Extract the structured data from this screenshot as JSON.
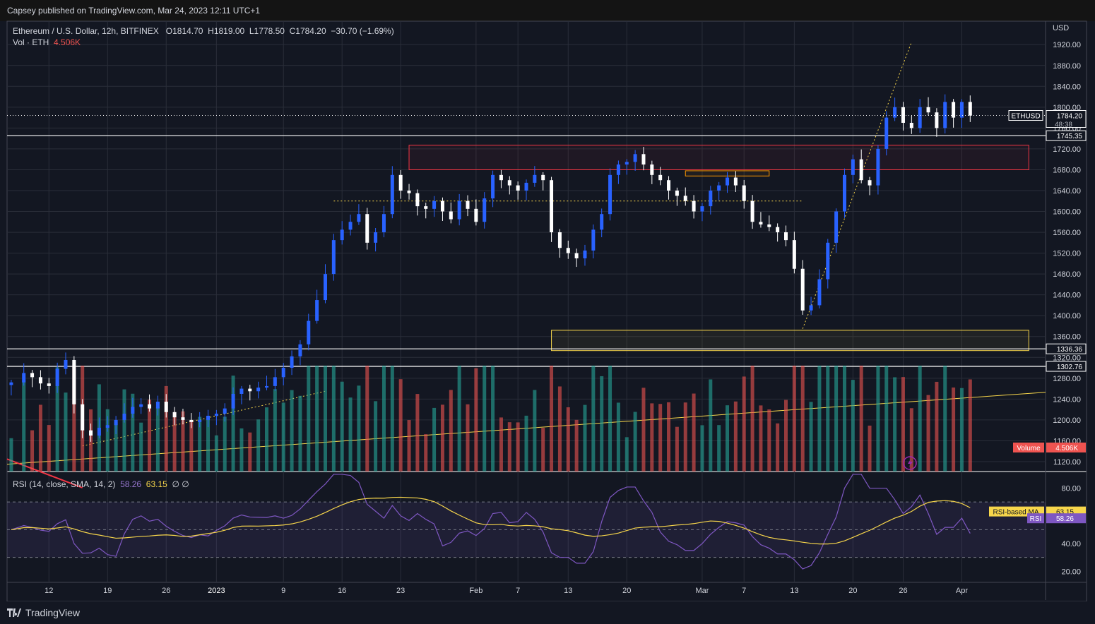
{
  "header": {
    "publisher": "Capsey published on TradingView.com, Mar 24, 2023 12:11 UTC+1"
  },
  "symbol": {
    "name": "Ethereum / U.S. Dollar, 12h, BITFINEX",
    "open": "O1814.70",
    "high": "H1819.00",
    "low": "L1778.50",
    "close": "C1784.20",
    "change": "−30.70 (−1.69%)",
    "vol_label": "Vol · ETH",
    "vol_value": "4.506K"
  },
  "rsi_legend": {
    "label": "RSI (14, close, SMA, 14, 2)",
    "rsi": "58.26",
    "ma": "63.15",
    "extra": "∅ ∅"
  },
  "footer": {
    "brand": "TradingView"
  },
  "colors": {
    "bg": "#131722",
    "up": "#2962ff",
    "down": "#ffffff",
    "vol_up": "#26a69a",
    "vol_down": "#ef5350",
    "rsi": "#7e57c2",
    "rsi_ma": "#f7d64b",
    "accent_red": "#f23645",
    "accent_yellow": "#f7d64b"
  },
  "chart_data": {
    "type": "candlestick",
    "currency": "USD",
    "price_ticks": [
      1920,
      1880,
      1840,
      1800,
      1760,
      1720,
      1680,
      1640,
      1600,
      1560,
      1520,
      1480,
      1440,
      1400,
      1360,
      1320,
      1280,
      1240,
      1200,
      1160,
      1120
    ],
    "price_tick_labels": [
      "1920.00",
      "1880.00",
      "1840.00",
      "1800.00",
      "1760.00",
      "1720.00",
      "1680.00",
      "1640.00",
      "1600.00",
      "1560.00",
      "1520.00",
      "1480.00",
      "1440.00",
      "1400.00",
      "1360.00",
      "1320.00",
      "1280.00",
      "1240.00",
      "1200.00",
      "1160.00",
      "1120.00"
    ],
    "price_range": [
      1101,
      1965
    ],
    "x_tick_labels": [
      "12",
      "19",
      "26",
      "2023",
      "9",
      "16",
      "23",
      "Feb",
      "7",
      "13",
      "20",
      "Mar",
      "7",
      "13",
      "20",
      "26",
      "Apr"
    ],
    "x_tick_days": [
      12,
      19,
      26,
      32,
      40,
      47,
      54,
      63,
      68,
      74,
      81,
      90,
      95,
      101,
      108,
      114,
      121
    ],
    "x_day_range": [
      7,
      131
    ],
    "series_close_anchors": [
      [
        7.5,
        1272
      ],
      [
        9,
        1290
      ],
      [
        10,
        1282
      ],
      [
        11,
        1270
      ],
      [
        12,
        1265
      ],
      [
        13,
        1298
      ],
      [
        14,
        1315
      ],
      [
        15,
        1230
      ],
      [
        16,
        1180
      ],
      [
        17,
        1170
      ],
      [
        18,
        1185
      ],
      [
        19,
        1190
      ],
      [
        20,
        1200
      ],
      [
        21,
        1212
      ],
      [
        22,
        1225
      ],
      [
        23,
        1230
      ],
      [
        24,
        1222
      ],
      [
        25,
        1235
      ],
      [
        26,
        1215
      ],
      [
        27,
        1205
      ],
      [
        28,
        1200
      ],
      [
        29,
        1196
      ],
      [
        30,
        1200
      ],
      [
        31,
        1208
      ],
      [
        32,
        1212
      ],
      [
        33,
        1222
      ],
      [
        34,
        1250
      ],
      [
        35,
        1260
      ],
      [
        36,
        1255
      ],
      [
        37,
        1262
      ],
      [
        38,
        1265
      ],
      [
        39,
        1282
      ],
      [
        40,
        1300
      ],
      [
        41,
        1322
      ],
      [
        42,
        1345
      ],
      [
        43,
        1390
      ],
      [
        44,
        1430
      ],
      [
        45,
        1480
      ],
      [
        46,
        1545
      ],
      [
        47,
        1565
      ],
      [
        48,
        1580
      ],
      [
        49,
        1595
      ],
      [
        50,
        1540
      ],
      [
        51,
        1560
      ],
      [
        52,
        1595
      ],
      [
        53,
        1670
      ],
      [
        54,
        1640
      ],
      [
        55,
        1635
      ],
      [
        56,
        1610
      ],
      [
        57,
        1605
      ],
      [
        58,
        1620
      ],
      [
        59,
        1600
      ],
      [
        60,
        1585
      ],
      [
        61,
        1620
      ],
      [
        62,
        1605
      ],
      [
        63,
        1580
      ],
      [
        64,
        1625
      ],
      [
        65,
        1670
      ],
      [
        66,
        1660
      ],
      [
        67,
        1650
      ],
      [
        68,
        1640
      ],
      [
        69,
        1655
      ],
      [
        70,
        1670
      ],
      [
        71,
        1660
      ],
      [
        72,
        1560
      ],
      [
        73,
        1530
      ],
      [
        74,
        1520
      ],
      [
        75,
        1510
      ],
      [
        76,
        1525
      ],
      [
        77,
        1565
      ],
      [
        78,
        1595
      ],
      [
        79,
        1670
      ],
      [
        80,
        1690
      ],
      [
        81,
        1695
      ],
      [
        82,
        1710
      ],
      [
        83,
        1690
      ],
      [
        84,
        1670
      ],
      [
        85,
        1660
      ],
      [
        86,
        1640
      ],
      [
        87,
        1630
      ],
      [
        88,
        1620
      ],
      [
        89,
        1600
      ],
      [
        90,
        1610
      ],
      [
        91,
        1640
      ],
      [
        92,
        1650
      ],
      [
        93,
        1665
      ],
      [
        94,
        1650
      ],
      [
        95,
        1620
      ],
      [
        96,
        1580
      ],
      [
        97,
        1575
      ],
      [
        98,
        1570
      ],
      [
        99,
        1560
      ],
      [
        100,
        1545
      ],
      [
        101,
        1490
      ],
      [
        102,
        1410
      ],
      [
        103,
        1420
      ],
      [
        104,
        1470
      ],
      [
        105,
        1540
      ],
      [
        106,
        1600
      ],
      [
        107,
        1670
      ],
      [
        108,
        1700
      ],
      [
        109,
        1660
      ],
      [
        110,
        1650
      ],
      [
        111,
        1720
      ],
      [
        112,
        1780
      ],
      [
        113,
        1800
      ],
      [
        114,
        1770
      ],
      [
        115,
        1760
      ],
      [
        116,
        1800
      ],
      [
        117,
        1790
      ],
      [
        118,
        1760
      ],
      [
        119,
        1810
      ],
      [
        120,
        1780
      ],
      [
        121,
        1810
      ],
      [
        122,
        1784
      ]
    ],
    "last_price": 1784.2,
    "price_labels": [
      {
        "text": "ETHUSD",
        "value": 1784.2
      },
      {
        "text": "1784.20",
        "value": 1784.2,
        "sub": "48:38"
      },
      {
        "text": "1745.35",
        "value": 1745.35
      },
      {
        "text": "1336.36",
        "value": 1336.36
      },
      {
        "text": "1302.76",
        "value": 1302.76
      }
    ],
    "horizontal_levels": [
      1745.35,
      1336.36,
      1302.76
    ],
    "zones": [
      {
        "kind": "red-box",
        "from_day": 55,
        "to_day": 129,
        "low": 1680,
        "high": 1727
      },
      {
        "kind": "yellow-box",
        "from_day": 72,
        "to_day": 129,
        "low": 1333,
        "high": 1372
      },
      {
        "kind": "orange-box",
        "from_day": 88,
        "to_day": 98,
        "low": 1668,
        "high": 1678
      }
    ],
    "volume": {
      "label": "Volume",
      "value": "4.506K",
      "max_visible": 4.5
    },
    "rsi": {
      "ticks": [
        80,
        40,
        20
      ],
      "tick_labels": [
        "80.00",
        "40.00",
        "20.00"
      ],
      "range": [
        12,
        92
      ],
      "bands": [
        70,
        30
      ],
      "current": 58.26,
      "ma_current": 63.15,
      "labels": [
        {
          "text": "RSI-based MA",
          "value": "63.15"
        },
        {
          "text": "RSI",
          "value": "58.26"
        }
      ]
    }
  }
}
